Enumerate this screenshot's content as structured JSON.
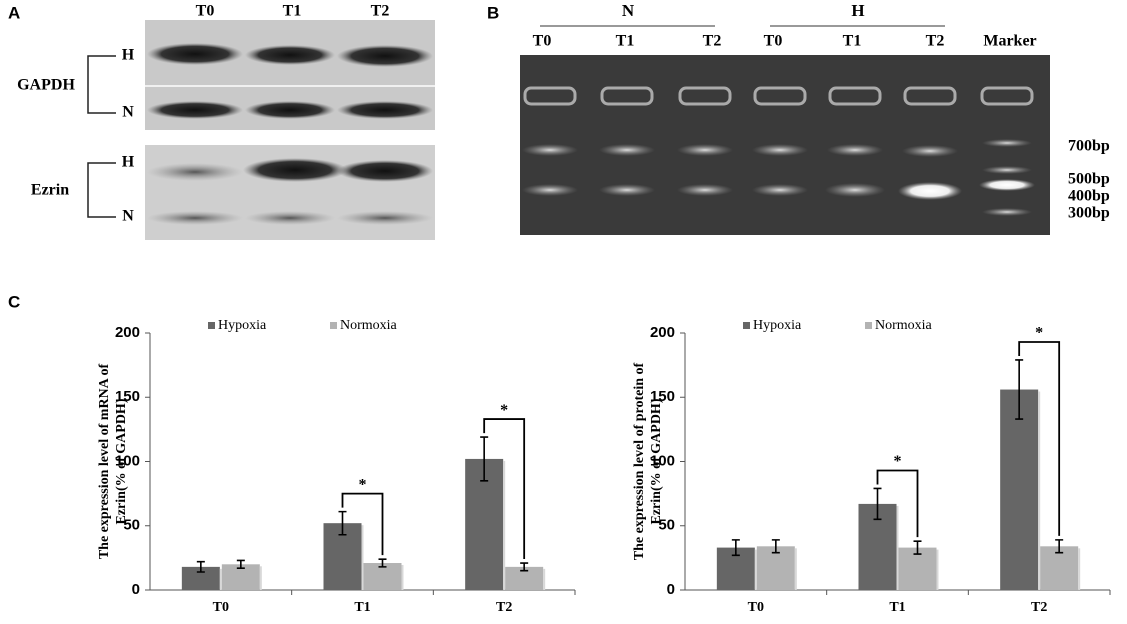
{
  "panel_labels": [
    "A",
    "B",
    "C"
  ],
  "blot": {
    "columns": [
      "T0",
      "T1",
      "T2"
    ],
    "proteins": [
      "GAPDH",
      "Ezrin"
    ],
    "rows": [
      "H",
      "N",
      "H",
      "N"
    ]
  },
  "gel": {
    "groups": [
      "N",
      "H"
    ],
    "lanes": [
      "T0",
      "T1",
      "T2",
      "T0",
      "T1",
      "T2",
      "Marker"
    ],
    "sizes": [
      "700bp",
      "500bp",
      "400bp",
      "300bp"
    ]
  },
  "chart_data": [
    {
      "type": "bar",
      "y_label": [
        "The expression level of mRNA of",
        "Ezrin(% of GAPDH)"
      ],
      "categories": [
        "T0",
        "T1",
        "T2"
      ],
      "series": [
        {
          "name": "Hypoxia",
          "color": "#666666",
          "values": [
            18,
            52,
            102
          ],
          "errors": [
            4,
            9,
            17
          ]
        },
        {
          "name": "Normoxia",
          "color": "#b3b3b3",
          "values": [
            20,
            21,
            18
          ],
          "errors": [
            3,
            3,
            3
          ]
        }
      ],
      "significance": [
        null,
        "*",
        "*"
      ],
      "ylim": [
        0,
        200
      ],
      "yticks": [
        0,
        50,
        100,
        150,
        200
      ]
    },
    {
      "type": "bar",
      "y_label": [
        "The expression level of protein of",
        "Ezrin(% of GAPDH)"
      ],
      "categories": [
        "T0",
        "T1",
        "T2"
      ],
      "series": [
        {
          "name": "Hypoxia",
          "color": "#666666",
          "values": [
            33,
            67,
            156
          ],
          "errors": [
            6,
            12,
            23
          ]
        },
        {
          "name": "Normoxia",
          "color": "#b3b3b3",
          "values": [
            34,
            33,
            34
          ],
          "errors": [
            5,
            5,
            5
          ]
        }
      ],
      "significance": [
        null,
        "*",
        "*"
      ],
      "ylim": [
        0,
        200
      ],
      "yticks": [
        0,
        50,
        100,
        150,
        200
      ]
    }
  ]
}
